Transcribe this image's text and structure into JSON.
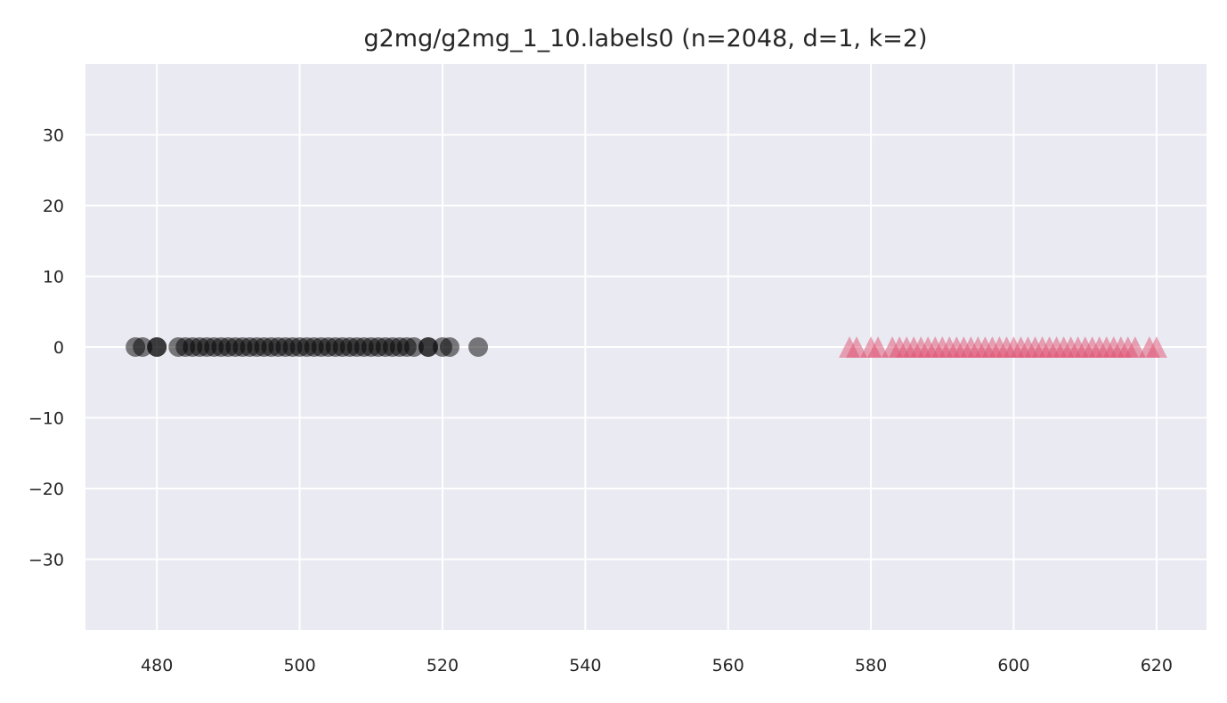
{
  "chart_data": {
    "type": "scatter",
    "title": "g2mg/g2mg_1_10.labels0 (n=2048, d=1, k=2)",
    "xlabel": "",
    "ylabel": "",
    "xlim": [
      470,
      627
    ],
    "ylim": [
      -40,
      40
    ],
    "xticks": [
      480,
      500,
      520,
      540,
      560,
      580,
      600,
      620
    ],
    "xtick_labels": [
      "480",
      "500",
      "520",
      "540",
      "560",
      "580",
      "600",
      "620"
    ],
    "yticks": [
      30,
      20,
      10,
      0,
      -10,
      -20,
      -30
    ],
    "ytick_labels": [
      "30",
      "20",
      "10",
      "0",
      "−10",
      "−20",
      "−30"
    ],
    "grid": true,
    "background": "#eaeaf2",
    "grid_color": "#ffffff",
    "series": [
      {
        "marker": "circle",
        "color": "#000000",
        "opacity": 0.5,
        "x": [
          477,
          478,
          480,
          480,
          483,
          484,
          485,
          486,
          487,
          488,
          489,
          490,
          491,
          492,
          493,
          494,
          495,
          496,
          497,
          498,
          499,
          500,
          501,
          502,
          503,
          504,
          505,
          506,
          507,
          508,
          509,
          510,
          511,
          512,
          513,
          514,
          515,
          516,
          518,
          518,
          520,
          521,
          525
        ],
        "y": [
          0,
          0,
          0,
          0,
          0,
          0,
          0,
          0,
          0,
          0,
          0,
          0,
          0,
          0,
          0,
          0,
          0,
          0,
          0,
          0,
          0,
          0,
          0,
          0,
          0,
          0,
          0,
          0,
          0,
          0,
          0,
          0,
          0,
          0,
          0,
          0,
          0,
          0,
          0,
          0,
          0,
          0,
          0
        ]
      },
      {
        "marker": "triangle",
        "color": "#e05070",
        "opacity": 0.5,
        "x": [
          577,
          578,
          580,
          581,
          583,
          584,
          585,
          586,
          587,
          588,
          589,
          590,
          591,
          592,
          593,
          594,
          595,
          596,
          597,
          598,
          599,
          600,
          601,
          602,
          603,
          604,
          605,
          606,
          607,
          608,
          609,
          610,
          611,
          612,
          613,
          614,
          615,
          616,
          617,
          619,
          620
        ],
        "y": [
          0,
          0,
          0,
          0,
          0,
          0,
          0,
          0,
          0,
          0,
          0,
          0,
          0,
          0,
          0,
          0,
          0,
          0,
          0,
          0,
          0,
          0,
          0,
          0,
          0,
          0,
          0,
          0,
          0,
          0,
          0,
          0,
          0,
          0,
          0,
          0,
          0,
          0,
          0,
          0,
          0
        ]
      }
    ]
  }
}
